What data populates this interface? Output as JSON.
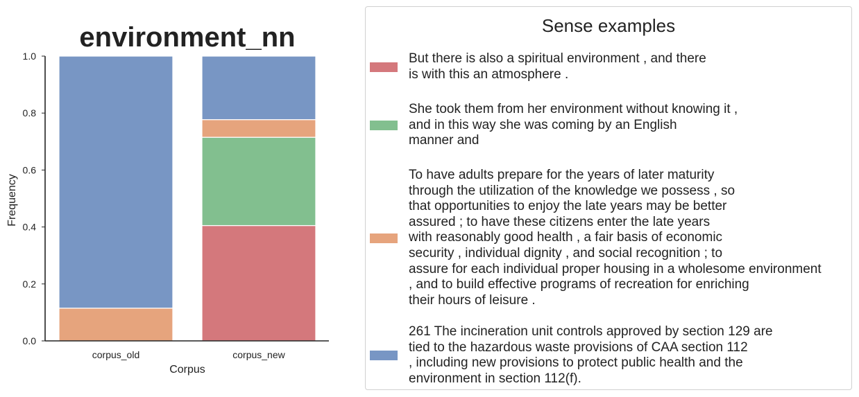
{
  "chart_data": {
    "type": "bar",
    "stacked": true,
    "title": "environment_nn",
    "xlabel": "Corpus",
    "ylabel": "Frequency",
    "ylim": [
      0,
      1.0
    ],
    "yticks": [
      "0.0",
      "0.2",
      "0.4",
      "0.6",
      "0.8",
      "1.0"
    ],
    "categories": [
      "corpus_old",
      "corpus_new"
    ],
    "series": [
      {
        "color": "#d4787c",
        "values": [
          0.0,
          0.405
        ]
      },
      {
        "color": "#82bf8f",
        "values": [
          0.0,
          0.31
        ]
      },
      {
        "color": "#e6a47d",
        "values": [
          0.115,
          0.062
        ]
      },
      {
        "color": "#7896c4",
        "values": [
          0.885,
          0.223
        ]
      }
    ],
    "grid": false,
    "legend_placement": "right"
  },
  "legend": {
    "title": "Sense examples",
    "entries": [
      {
        "color": "#d4787c",
        "lines": [
          "But there is also a spiritual environment , and there",
          "is with this an atmosphere ."
        ]
      },
      {
        "color": "#82bf8f",
        "lines": [
          "She took them from her environment without knowing it ,",
          "and in this way she was coming by an English",
          "manner and"
        ]
      },
      {
        "color": "#e6a47d",
        "lines": [
          "To have adults prepare for the years of later maturity",
          "through the utilization of the knowledge we possess , so",
          "that opportunities to enjoy the late years may be better",
          "assured ; to have these citizens enter the late years",
          "with reasonably good health , a fair basis of economic",
          "security , individual dignity , and social recognition ; to",
          "assure for each individual proper housing in a wholesome environment",
          ", and to build effective programs of recreation for enriching",
          "their hours of leisure ."
        ]
      },
      {
        "color": "#7896c4",
        "lines": [
          "261 The incineration unit controls approved by section 129 are",
          "tied to the hazardous waste provisions of CAA section 112",
          ", including new provisions to protect public health and the",
          "environment in section 112(f)."
        ]
      }
    ]
  }
}
